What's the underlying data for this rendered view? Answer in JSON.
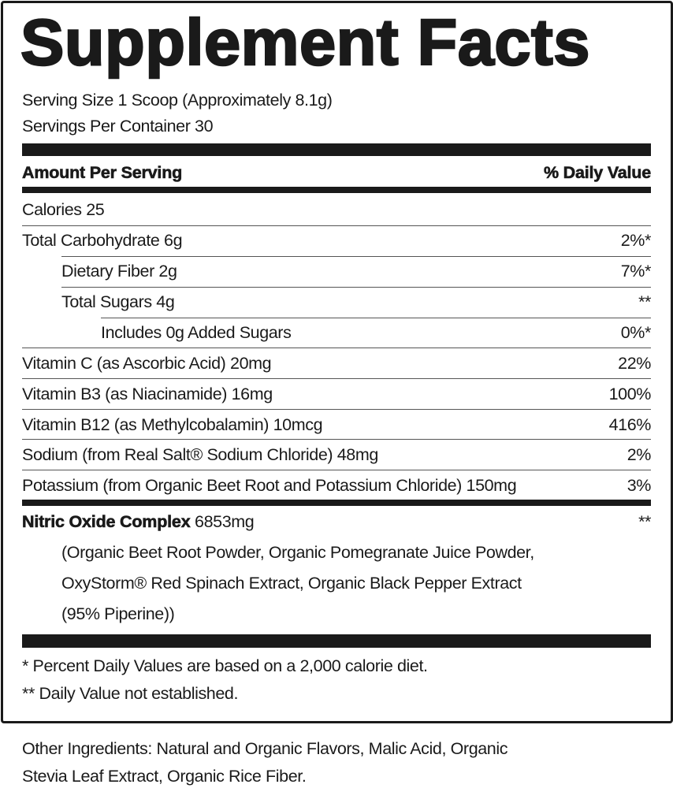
{
  "title": "Supplement Facts",
  "serving_size": "Serving Size 1 Scoop (Approximately 8.1g)",
  "servings_per_container": "Servings Per Container 30",
  "header": {
    "amount": "Amount Per Serving",
    "dv": "% Daily Value"
  },
  "calories": "Calories 25",
  "rows": [
    {
      "label": "Total Carbohydrate 6g",
      "dv": "2%*"
    },
    {
      "label": "Dietary Fiber 2g",
      "dv": "7%*"
    },
    {
      "label": "Total Sugars 4g",
      "dv": "**"
    },
    {
      "label": "Includes 0g Added Sugars",
      "dv": "0%*"
    },
    {
      "label": "Vitamin C (as Ascorbic Acid) 20mg",
      "dv": "22%"
    },
    {
      "label": "Vitamin B3 (as Niacinamide) 16mg",
      "dv": "100%"
    },
    {
      "label": "Vitamin B12 (as Methylcobalamin) 10mcg",
      "dv": "416%"
    },
    {
      "label": "Sodium (from Real Salt® Sodium Chloride) 48mg",
      "dv": "2%"
    },
    {
      "label": "Potassium (from Organic Beet Root and Potassium Chloride) 150mg",
      "dv": "3%"
    }
  ],
  "blend": {
    "name": "Nitric Oxide Complex",
    "amount": "6853mg",
    "dv": "**",
    "lines": [
      "(Organic Beet Root Powder, Organic Pomegranate Juice Powder,",
      "OxyStorm® Red Spinach Extract, Organic Black Pepper Extract",
      "(95% Piperine))"
    ]
  },
  "footnotes": [
    "* Percent Daily Values are based on a 2,000 calorie diet.",
    "** Daily Value not established."
  ],
  "other_ingredients": [
    "Other Ingredients: Natural and Organic Flavors, Malic Acid, Organic",
    "Stevia Leaf Extract, Organic Rice Fiber."
  ]
}
